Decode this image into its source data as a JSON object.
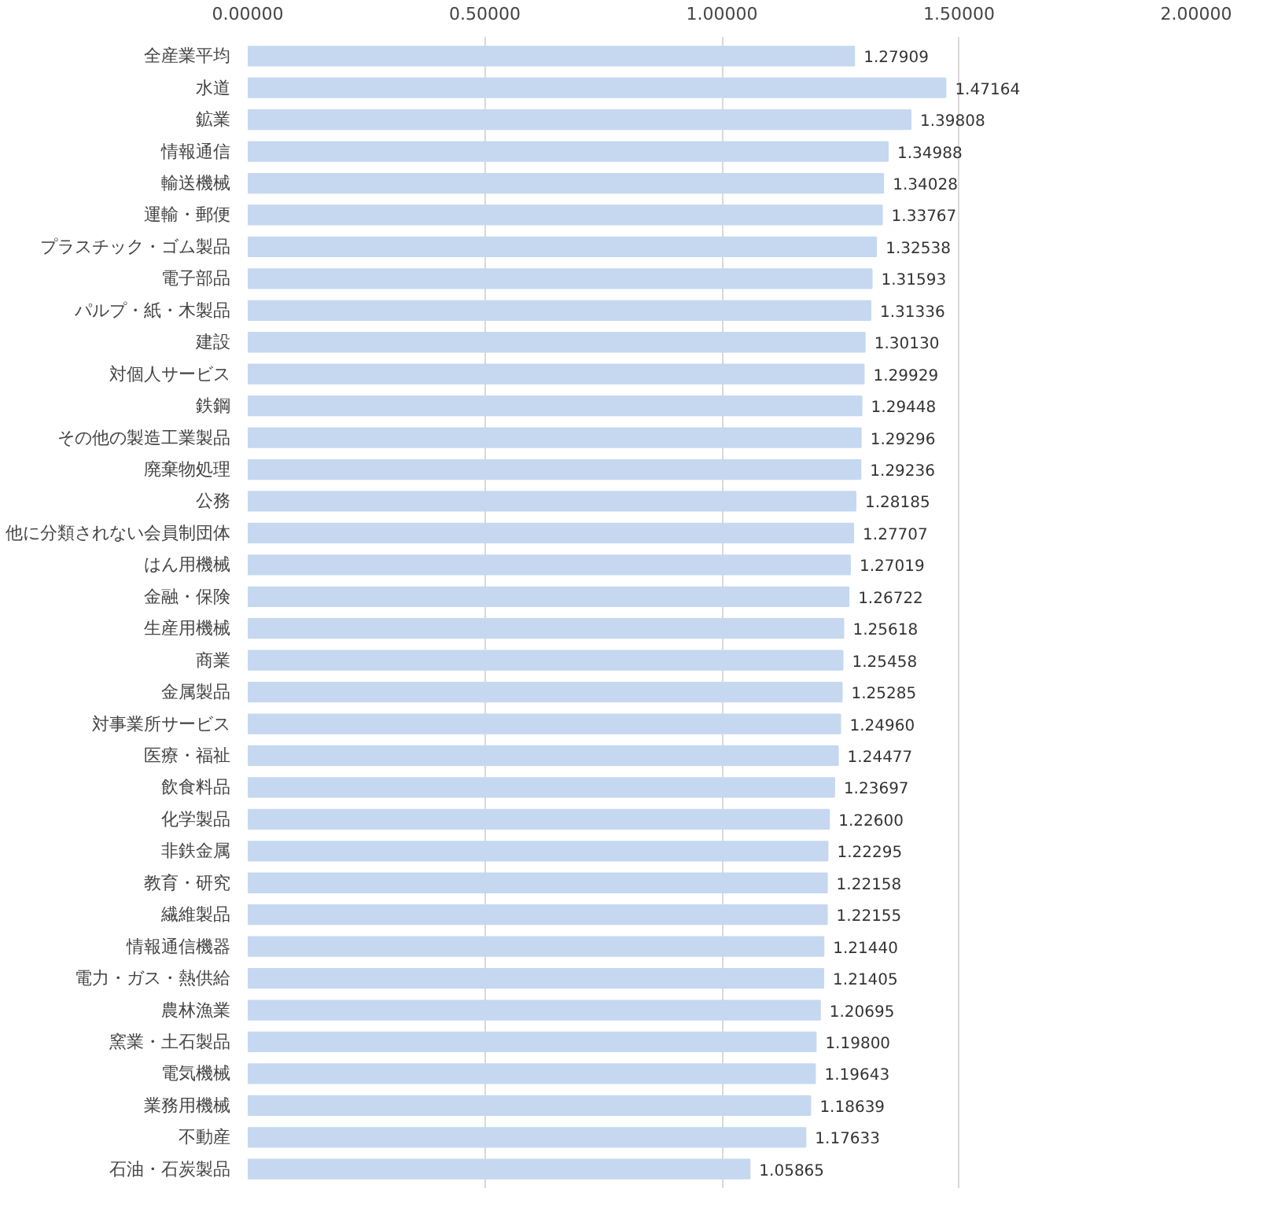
{
  "chart_data": {
    "type": "bar",
    "orientation": "horizontal",
    "categories": [
      "全産業平均",
      "水道",
      "鉱業",
      "情報通信",
      "輸送機械",
      "運輸・郵便",
      "プラスチック・ゴム製品",
      "電子部品",
      "パルプ・紙・木製品",
      "建設",
      "対個人サービス",
      "鉄鋼",
      "その他の製造工業製品",
      "廃棄物処理",
      "公務",
      "他に分類されない会員制団体",
      "はん用機械",
      "金融・保険",
      "生産用機械",
      "商業",
      "金属製品",
      "対事業所サービス",
      "医療・福祉",
      "飲食料品",
      "化学製品",
      "非鉄金属",
      "教育・研究",
      "繊維製品",
      "情報通信機器",
      "電力・ガス・熱供給",
      "農林漁業",
      "窯業・土石製品",
      "電気機械",
      "業務用機械",
      "不動産",
      "石油・石炭製品"
    ],
    "values": [
      1.27909,
      1.47164,
      1.39808,
      1.34988,
      1.34028,
      1.33767,
      1.32538,
      1.31593,
      1.31336,
      1.3013,
      1.29929,
      1.29448,
      1.29296,
      1.29236,
      1.28185,
      1.27707,
      1.27019,
      1.26722,
      1.25618,
      1.25458,
      1.25285,
      1.2496,
      1.24477,
      1.23697,
      1.226,
      1.22295,
      1.22158,
      1.22155,
      1.2144,
      1.21405,
      1.20695,
      1.198,
      1.19643,
      1.18639,
      1.17633,
      1.05865
    ],
    "value_labels": [
      "1.27909",
      "1.47164",
      "1.39808",
      "1.34988",
      "1.34028",
      "1.33767",
      "1.32538",
      "1.31593",
      "1.31336",
      "1.30130",
      "1.29929",
      "1.29448",
      "1.29296",
      "1.29236",
      "1.28185",
      "1.27707",
      "1.27019",
      "1.26722",
      "1.25618",
      "1.25458",
      "1.25285",
      "1.24960",
      "1.24477",
      "1.23697",
      "1.22600",
      "1.22295",
      "1.22158",
      "1.22155",
      "1.21440",
      "1.21405",
      "1.20695",
      "1.19800",
      "1.19643",
      "1.18639",
      "1.17633",
      "1.05865"
    ],
    "color": "#c5d8f0",
    "xlim": [
      0,
      2
    ],
    "xticks": [
      {
        "value": 0,
        "label": "0.00000"
      },
      {
        "value": 0.5,
        "label": "0.50000"
      },
      {
        "value": 1,
        "label": "1.00000"
      },
      {
        "value": 1.5,
        "label": "1.50000"
      },
      {
        "value": 2,
        "label": "2.00000"
      }
    ],
    "grid": "x"
  }
}
